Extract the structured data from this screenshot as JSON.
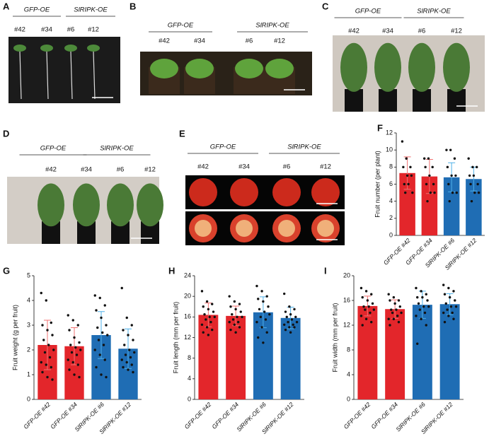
{
  "panels": [
    {
      "label": "A",
      "groups": [
        "GFP-OE",
        "SlRIPK-OE"
      ],
      "lines": [
        "#42",
        "#34",
        "#6",
        "#12"
      ]
    },
    {
      "label": "B",
      "groups": [
        "GFP-OE",
        "SlRIPK-OE"
      ],
      "lines": [
        "#42",
        "#34",
        "#6",
        "#12"
      ]
    },
    {
      "label": "C",
      "groups": [
        "GFP-OE",
        "SlRIPK-OE"
      ],
      "lines": [
        "#42",
        "#34",
        "#6",
        "#12"
      ]
    },
    {
      "label": "D",
      "groups": [
        "GFP-OE",
        "SlRIPK-OE"
      ],
      "lines": [
        "#42",
        "#34",
        "#6",
        "#12"
      ]
    },
    {
      "label": "E",
      "groups": [
        "GFP-OE",
        "SlRIPK-OE"
      ],
      "lines": [
        "#42",
        "#34",
        "#6",
        "#12"
      ]
    }
  ],
  "chart_data": [
    {
      "type": "bar",
      "panel": "F",
      "ylabel": "Fruit number (per plant)",
      "categories": [
        "GFP-OE #42",
        "GFP-OE #34",
        "SlRIPK-OE #6",
        "SlRIPK-OE #12"
      ],
      "colors": [
        "#e3262b",
        "#e3262b",
        "#1f6db4",
        "#1f6db4"
      ],
      "values": [
        7.3,
        6.9,
        6.8,
        6.6
      ],
      "errors": [
        1.9,
        2.0,
        1.7,
        1.4
      ],
      "points": [
        [
          11,
          9,
          8,
          8,
          7,
          7,
          6,
          6,
          5,
          5
        ],
        [
          9,
          9,
          8,
          8,
          7,
          6,
          6,
          5,
          5,
          4
        ],
        [
          10,
          10,
          9,
          8,
          7,
          7,
          6,
          5,
          5,
          4
        ],
        [
          9,
          8,
          8,
          7,
          7,
          6,
          6,
          5,
          5,
          4
        ]
      ],
      "ylim": [
        0,
        12
      ],
      "yticks": [
        0,
        2,
        4,
        6,
        8,
        10,
        12
      ]
    },
    {
      "type": "bar",
      "panel": "G",
      "ylabel": "Fruit weight (g per fruit)",
      "categories": [
        "GFP-OE #42",
        "GFP-OE #34",
        "SlRIPK-OE #6",
        "SlRIPK-OE #12"
      ],
      "colors": [
        "#e3262b",
        "#e3262b",
        "#1f6db4",
        "#1f6db4"
      ],
      "values": [
        2.2,
        2.15,
        2.6,
        2.05
      ],
      "errors": [
        1.0,
        0.75,
        0.95,
        0.8
      ],
      "points": [
        [
          4.3,
          4.0,
          3.1,
          3.0,
          2.8,
          2.6,
          2.4,
          2.2,
          2.0,
          1.9,
          1.7,
          1.5,
          1.4,
          1.3,
          1.1,
          0.9,
          0.8
        ],
        [
          3.4,
          3.2,
          3.0,
          2.8,
          2.5,
          2.3,
          2.2,
          2.1,
          2.0,
          1.9,
          1.8,
          1.6,
          1.5,
          1.4,
          1.2,
          1.0,
          0.9
        ],
        [
          4.2,
          4.1,
          3.8,
          3.6,
          3.3,
          3.0,
          2.9,
          2.7,
          2.6,
          2.4,
          2.2,
          2.0,
          1.8,
          1.6,
          1.3,
          1.0,
          0.9
        ],
        [
          4.5,
          3.3,
          3.0,
          2.8,
          2.6,
          2.4,
          2.2,
          2.0,
          1.9,
          1.8,
          1.7,
          1.6,
          1.5,
          1.4,
          1.3,
          1.2,
          1.1
        ]
      ],
      "ylim": [
        0,
        5
      ],
      "yticks": [
        0,
        1,
        2,
        3,
        4,
        5
      ]
    },
    {
      "type": "bar",
      "panel": "H",
      "ylabel": "Fruit length (mm per fruit)",
      "categories": [
        "GFP-OE #42",
        "GFP-OE #34",
        "SlRIPK-OE #6",
        "SlRIPK-OE #12"
      ],
      "colors": [
        "#e3262b",
        "#e3262b",
        "#1f6db4",
        "#1f6db4"
      ],
      "values": [
        16.4,
        16.2,
        16.9,
        15.8
      ],
      "errors": [
        2.3,
        1.9,
        3.0,
        2.1
      ],
      "points": [
        [
          21,
          19,
          18.5,
          18,
          17.5,
          17,
          16.5,
          16,
          16,
          15.5,
          15,
          14.5,
          14,
          13.5,
          13,
          12.5
        ],
        [
          20,
          19,
          18.5,
          18,
          17.5,
          17,
          16.5,
          16,
          16,
          15.5,
          15,
          15,
          14.5,
          14,
          13.5,
          13
        ],
        [
          22,
          21,
          20,
          19.5,
          19,
          18,
          17.5,
          17,
          16.5,
          16,
          15.5,
          15,
          14,
          13,
          12,
          11
        ],
        [
          20.5,
          18,
          17.5,
          17,
          16.5,
          16,
          16,
          15.5,
          15,
          15,
          14.5,
          14.5,
          14,
          14,
          13.5,
          13
        ]
      ],
      "ylim": [
        0,
        24
      ],
      "yticks": [
        0,
        4,
        8,
        12,
        16,
        20,
        24
      ]
    },
    {
      "type": "bar",
      "panel": "I",
      "ylabel": "Fruit width (mm per fruit)",
      "categories": [
        "GFP-OE #42",
        "GFP-OE #34",
        "SlRIPK-OE #6",
        "SlRIPK-OE #12"
      ],
      "colors": [
        "#e3262b",
        "#e3262b",
        "#1f6db4",
        "#1f6db4"
      ],
      "values": [
        15.1,
        14.6,
        15.3,
        15.4
      ],
      "errors": [
        1.6,
        1.5,
        2.2,
        1.7
      ],
      "points": [
        [
          18,
          17.5,
          17,
          16.5,
          16,
          15.5,
          15,
          15,
          14.5,
          14.5,
          14,
          13.5,
          13,
          12.5,
          12
        ],
        [
          17,
          16.5,
          16,
          16,
          15.5,
          15,
          14.5,
          14.5,
          14,
          14,
          13.5,
          13,
          13,
          12.5,
          12
        ],
        [
          18,
          17.5,
          17,
          16.5,
          16.5,
          16,
          15.5,
          15,
          15,
          14.5,
          14,
          13.5,
          13,
          12,
          9
        ],
        [
          18.5,
          18,
          17.5,
          17,
          16.5,
          16,
          15.5,
          15,
          15,
          14.5,
          14,
          14,
          13.5,
          13,
          12.5
        ]
      ],
      "ylim": [
        0,
        20
      ],
      "yticks": [
        0,
        4,
        8,
        12,
        16,
        20
      ]
    }
  ]
}
